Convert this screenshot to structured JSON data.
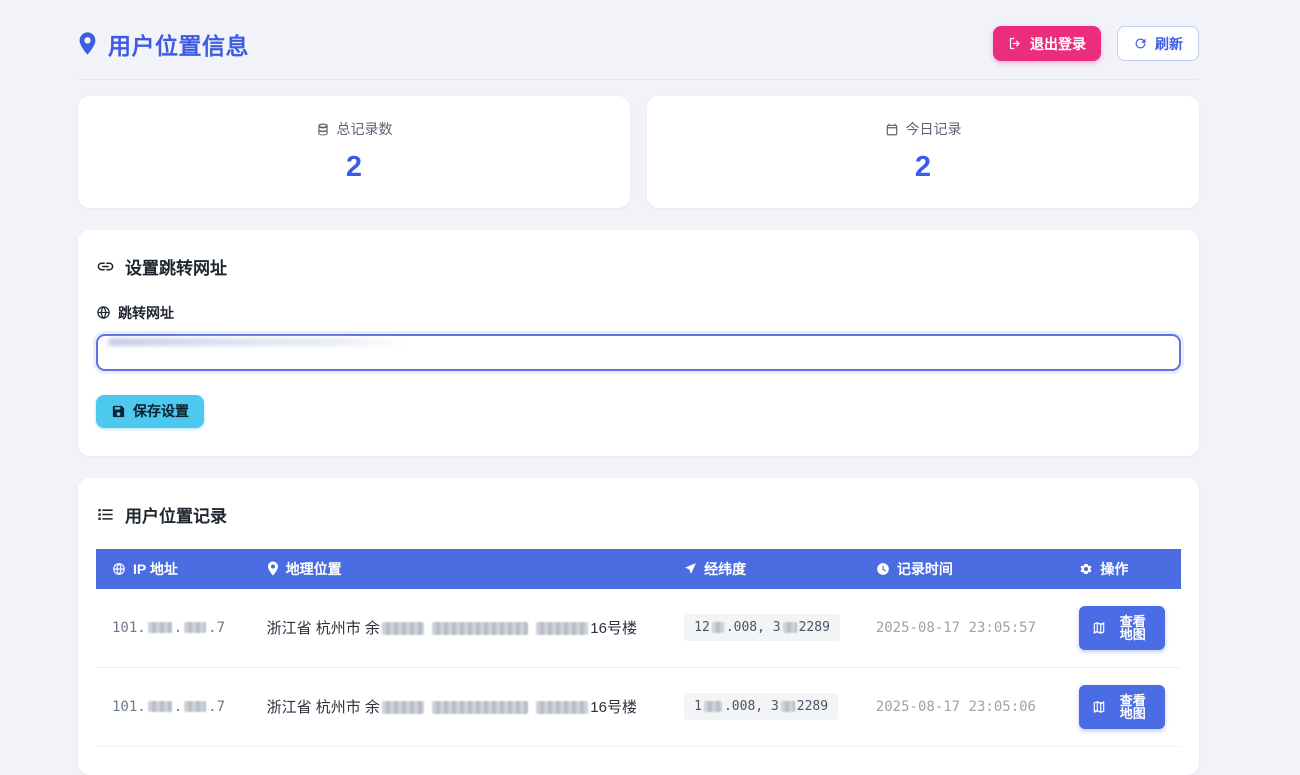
{
  "header": {
    "title": "用户位置信息",
    "logout_label": "退出登录",
    "refresh_label": "刷新"
  },
  "stats": {
    "total": {
      "icon": "database-icon",
      "label": "总记录数",
      "value": "2"
    },
    "today": {
      "icon": "calendar-icon",
      "label": "今日记录",
      "value": "2"
    }
  },
  "settings": {
    "title": "设置跳转网址",
    "field_label": "跳转网址",
    "input_value": "",
    "input_value_redacted": true,
    "save_label": "保存设置"
  },
  "records": {
    "title": "用户位置记录",
    "columns": {
      "ip": "IP 地址",
      "location": "地理位置",
      "coordinates": "经纬度",
      "time": "记录时间",
      "action": "操作"
    },
    "map_button_label": "查看地图",
    "rows": [
      {
        "ip": [
          {
            "t": "101."
          },
          {
            "r": 24
          },
          {
            "t": "."
          },
          {
            "r": 22
          },
          {
            "t": ".7"
          }
        ],
        "location": [
          {
            "t": "浙江省 杭州市 余"
          },
          {
            "r": 42
          },
          {
            "t": " "
          },
          {
            "r": 96
          },
          {
            "t": " "
          },
          {
            "r": 52
          },
          {
            "t": "16号楼"
          }
        ],
        "coordinates": [
          {
            "t": "12"
          },
          {
            "r": 12
          },
          {
            "t": ".008, 3"
          },
          {
            "r": 14
          },
          {
            "t": "2289"
          }
        ],
        "time": "2025-08-17 23:05:57"
      },
      {
        "ip": [
          {
            "t": "101."
          },
          {
            "r": 24
          },
          {
            "t": "."
          },
          {
            "r": 22
          },
          {
            "t": ".7"
          }
        ],
        "location": [
          {
            "t": "浙江省 杭州市 余"
          },
          {
            "r": 42
          },
          {
            "t": " "
          },
          {
            "r": 96
          },
          {
            "t": " "
          },
          {
            "r": 52
          },
          {
            "t": "16号楼"
          }
        ],
        "coordinates": [
          {
            "t": "1"
          },
          {
            "r": 18
          },
          {
            "t": ".008, 3"
          },
          {
            "r": 14
          },
          {
            "t": "2289"
          }
        ],
        "time": "2025-08-17 23:05:06"
      }
    ]
  },
  "colors": {
    "page_background": "#f1f3f8",
    "accent_blue": "#3f5ce0",
    "table_header_blue": "#4a6ce0",
    "stat_value_blue": "#3b5ce8",
    "logout_pink": "#ec2d7d",
    "save_cyan": "#4dc9ef",
    "map_button_blue": "#4a6ce5"
  }
}
